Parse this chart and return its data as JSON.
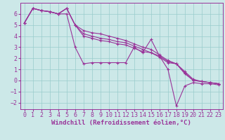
{
  "background_color": "#cce8e8",
  "line_color": "#993399",
  "grid_color": "#99cccc",
  "xlabel": "Windchill (Refroidissement éolien,°C)",
  "xlabel_fontsize": 6.5,
  "tick_fontsize": 6.0,
  "ylim": [
    -2.6,
    7.0
  ],
  "xlim": [
    -0.5,
    23.5
  ],
  "yticks": [
    -2,
    -1,
    0,
    1,
    2,
    3,
    4,
    5,
    6
  ],
  "xticks": [
    0,
    1,
    2,
    3,
    4,
    5,
    6,
    7,
    8,
    9,
    10,
    11,
    12,
    13,
    14,
    15,
    16,
    17,
    18,
    19,
    20,
    21,
    22,
    23
  ],
  "series": [
    [
      5.2,
      6.5,
      6.3,
      6.2,
      6.0,
      6.0,
      3.0,
      1.5,
      1.6,
      1.6,
      1.6,
      1.6,
      1.6,
      3.0,
      2.5,
      3.7,
      2.2,
      1.0,
      -2.3,
      -0.5,
      -0.2,
      -0.3,
      -0.3,
      -0.4
    ],
    [
      5.2,
      6.5,
      6.3,
      6.2,
      6.0,
      6.5,
      5.0,
      4.5,
      4.3,
      4.2,
      4.0,
      3.8,
      3.6,
      3.3,
      3.0,
      2.8,
      2.3,
      1.8,
      1.5,
      0.8,
      0.1,
      -0.1,
      -0.2,
      -0.3
    ],
    [
      5.2,
      6.5,
      6.3,
      6.2,
      6.0,
      6.5,
      5.0,
      4.2,
      4.0,
      3.8,
      3.7,
      3.5,
      3.4,
      3.1,
      2.8,
      2.5,
      2.2,
      1.7,
      1.5,
      0.7,
      0.0,
      -0.1,
      -0.2,
      -0.3
    ],
    [
      5.2,
      6.5,
      6.3,
      6.2,
      6.0,
      6.5,
      5.0,
      4.0,
      3.8,
      3.6,
      3.5,
      3.3,
      3.2,
      2.9,
      2.6,
      2.5,
      2.1,
      1.6,
      1.5,
      0.6,
      0.0,
      -0.1,
      -0.2,
      -0.3
    ]
  ],
  "marker": "+",
  "markersize": 3.5,
  "linewidth": 0.8
}
